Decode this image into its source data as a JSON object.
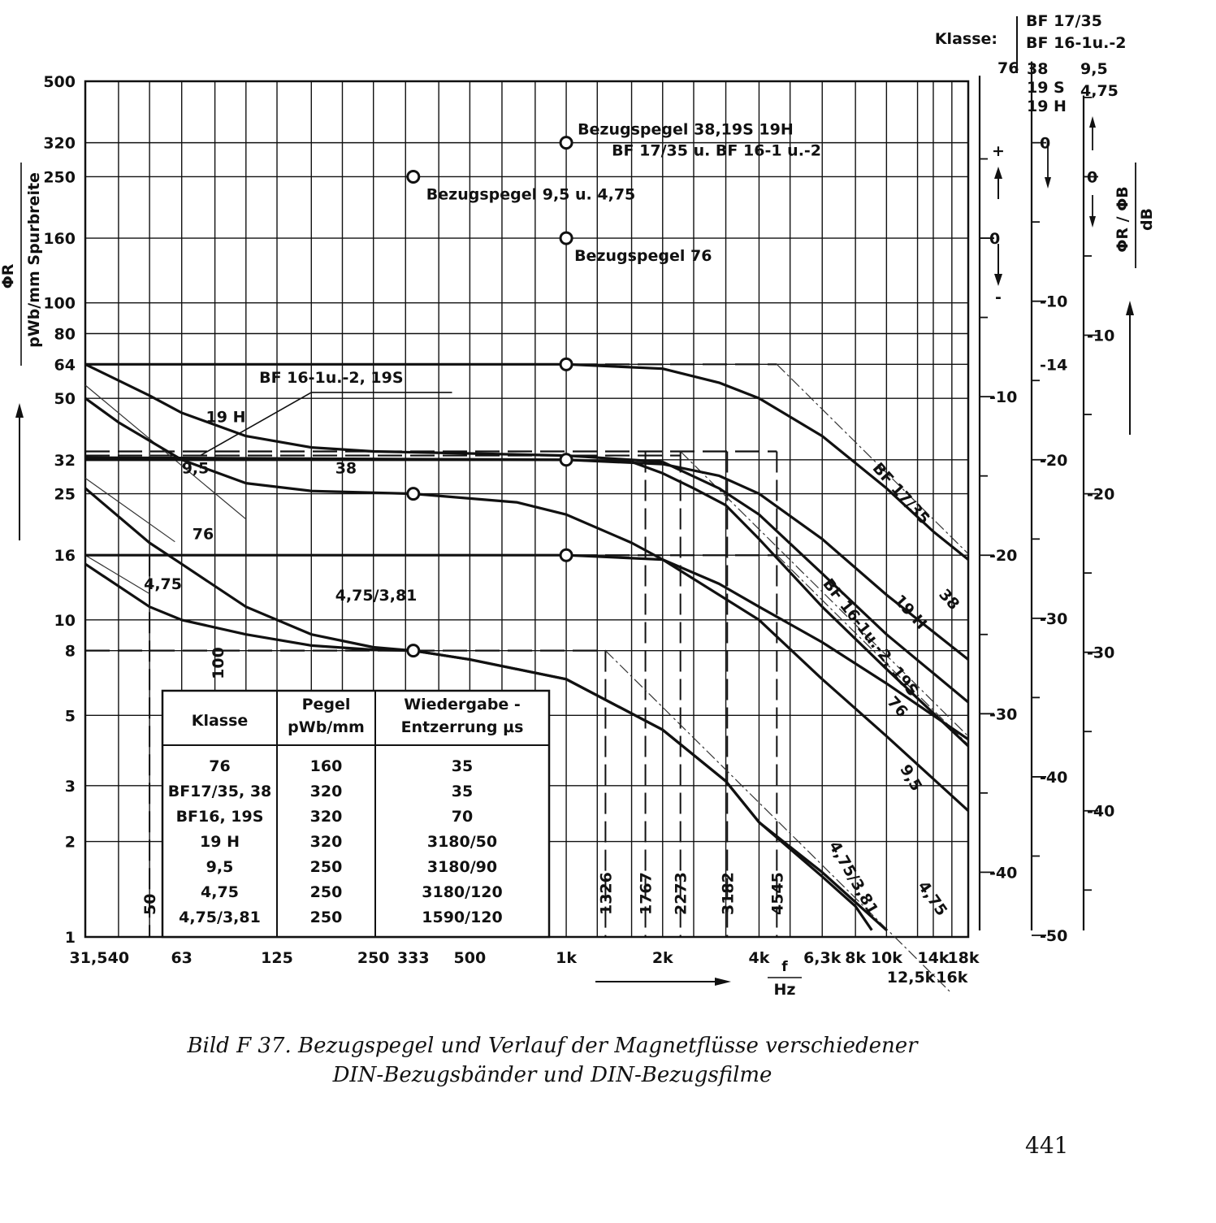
{
  "chart_data": {
    "type": "line",
    "x_scale": "log",
    "y_scale": "log",
    "xlim": [
      31.5,
      18000
    ],
    "ylim": [
      1,
      500
    ],
    "x_tick_labels": [
      {
        "value": 31.5,
        "label": "31,5"
      },
      {
        "value": 40,
        "label": "40"
      },
      {
        "value": 63,
        "label": "63"
      },
      {
        "value": 125,
        "label": "125"
      },
      {
        "value": 250,
        "label": "250"
      },
      {
        "value": 333,
        "label": "333"
      },
      {
        "value": 500,
        "label": "500"
      },
      {
        "value": 1000,
        "label": "1k"
      },
      {
        "value": 2000,
        "label": "2k"
      },
      {
        "value": 4000,
        "label": "4k"
      },
      {
        "value": 6300,
        "label": "6,3k"
      },
      {
        "value": 8000,
        "label": "8k"
      },
      {
        "value": 10000,
        "label": "10k"
      },
      {
        "value": 14000,
        "label": "14k"
      },
      {
        "value": 18000,
        "label": "18k"
      }
    ],
    "x_tick_labels_row2": [
      {
        "value": 12500,
        "label": "12,5k"
      },
      {
        "value": 16000,
        "label": "16k"
      }
    ],
    "x_grid": [
      31.5,
      40,
      50,
      63,
      80,
      100,
      125,
      160,
      200,
      250,
      315,
      400,
      500,
      630,
      800,
      1000,
      1250,
      1600,
      2000,
      2500,
      3150,
      4000,
      5000,
      6300,
      8000,
      10000,
      12500,
      14000,
      16000,
      18000
    ],
    "y_tick_labels": [
      {
        "value": 500,
        "label": "500"
      },
      {
        "value": 320,
        "label": "320"
      },
      {
        "value": 250,
        "label": "250"
      },
      {
        "value": 160,
        "label": "160"
      },
      {
        "value": 100,
        "label": "100"
      },
      {
        "value": 80,
        "label": "80"
      },
      {
        "value": 64,
        "label": "64"
      },
      {
        "value": 50,
        "label": "50"
      },
      {
        "value": 32,
        "label": "32"
      },
      {
        "value": 25,
        "label": "25"
      },
      {
        "value": 16,
        "label": "16"
      },
      {
        "value": 10,
        "label": "10"
      },
      {
        "value": 8,
        "label": "8"
      },
      {
        "value": 5,
        "label": "5"
      },
      {
        "value": 3,
        "label": "3"
      },
      {
        "value": 2,
        "label": "2"
      },
      {
        "value": 1,
        "label": "1"
      }
    ],
    "y_grid": [
      500,
      320,
      250,
      160,
      100,
      80,
      64,
      50,
      32,
      25,
      16,
      10,
      8,
      5,
      3,
      2,
      1
    ],
    "ylabel_symbol": "ΦR",
    "ylabel": "pWb/mm Spurbreite",
    "xlabel_num": "f",
    "xlabel_den": "Hz",
    "series": [
      {
        "name": "BF 17/35",
        "label_rot": 48,
        "points": [
          [
            31.5,
            64
          ],
          [
            1000,
            64
          ],
          [
            2000,
            62
          ],
          [
            3000,
            56
          ],
          [
            4000,
            50
          ],
          [
            6300,
            38
          ],
          [
            10000,
            26
          ],
          [
            14000,
            19
          ],
          [
            18000,
            15.5
          ]
        ]
      },
      {
        "name": "38",
        "label_rot": 42,
        "points": [
          [
            31.5,
            32
          ],
          [
            1000,
            32
          ],
          [
            2000,
            31
          ],
          [
            3000,
            28.5
          ],
          [
            4000,
            25
          ],
          [
            6300,
            18
          ],
          [
            10000,
            12
          ],
          [
            18000,
            7.5
          ]
        ]
      },
      {
        "name": "19 H",
        "label_rot": 45,
        "points": [
          [
            31.5,
            64
          ],
          [
            50,
            51
          ],
          [
            63,
            45
          ],
          [
            100,
            38
          ],
          [
            160,
            35
          ],
          [
            250,
            34
          ],
          [
            1000,
            33
          ],
          [
            2000,
            31.5
          ],
          [
            3000,
            26
          ],
          [
            4000,
            21.5
          ],
          [
            6300,
            14
          ],
          [
            10000,
            9
          ],
          [
            18000,
            5.5
          ]
        ]
      },
      {
        "name": "BF 16-1u.-2, 19S",
        "label_rot": 50,
        "points": [
          [
            31.5,
            32.5
          ],
          [
            1000,
            32
          ],
          [
            1600,
            31.5
          ],
          [
            2000,
            29
          ],
          [
            2500,
            26
          ],
          [
            3150,
            23
          ],
          [
            4000,
            18
          ],
          [
            6300,
            11
          ],
          [
            10000,
            7
          ],
          [
            18000,
            4
          ]
        ]
      },
      {
        "name": "76",
        "label_rot": 45,
        "points": [
          [
            31.5,
            16
          ],
          [
            1000,
            16
          ],
          [
            2000,
            15.5
          ],
          [
            3000,
            13
          ],
          [
            4000,
            11
          ],
          [
            6300,
            8.5
          ],
          [
            10000,
            6.3
          ],
          [
            18000,
            4.2
          ]
        ]
      },
      {
        "name": "9,5",
        "label_rot": 60,
        "points": [
          [
            31.5,
            50
          ],
          [
            40,
            42
          ],
          [
            63,
            32
          ],
          [
            100,
            27
          ],
          [
            160,
            25.5
          ],
          [
            333,
            25
          ],
          [
            700,
            23.5
          ],
          [
            1000,
            21.5
          ],
          [
            1600,
            17.5
          ],
          [
            2000,
            15.5
          ],
          [
            4000,
            10
          ],
          [
            6300,
            6.5
          ],
          [
            10000,
            4.3
          ],
          [
            18000,
            2.5
          ]
        ]
      },
      {
        "name": "4,75",
        "label_rot": 50,
        "points": [
          [
            31.5,
            26
          ],
          [
            50,
            17.5
          ],
          [
            63,
            15
          ],
          [
            100,
            11
          ],
          [
            160,
            9
          ],
          [
            250,
            8.2
          ],
          [
            333,
            8
          ],
          [
            500,
            7.5
          ],
          [
            1000,
            6.5
          ],
          [
            2000,
            4.5
          ],
          [
            3150,
            3.1
          ],
          [
            4000,
            2.3
          ],
          [
            6300,
            1.6
          ],
          [
            10000,
            1.05
          ]
        ]
      },
      {
        "name": "4,75/3,81",
        "label_rot": 60,
        "points": [
          [
            31.5,
            15
          ],
          [
            50,
            11
          ],
          [
            63,
            10
          ],
          [
            100,
            9
          ],
          [
            160,
            8.3
          ],
          [
            250,
            8.05
          ],
          [
            333,
            8
          ],
          [
            500,
            7.5
          ],
          [
            1000,
            6.5
          ],
          [
            2000,
            4.5
          ],
          [
            3150,
            3.1
          ],
          [
            4000,
            2.3
          ],
          [
            6300,
            1.55
          ],
          [
            8000,
            1.25
          ],
          [
            9000,
            1.05
          ]
        ]
      }
    ],
    "curve_labels": [
      {
        "text": "BF 16-1u.-2, 19S",
        "f": 110,
        "v": 56
      },
      {
        "text": "19 H",
        "f": 75,
        "v": 42
      },
      {
        "text": "9,5",
        "f": 63,
        "v": 29
      },
      {
        "text": "38",
        "f": 190,
        "v": 29
      },
      {
        "text": "76",
        "f": 68,
        "v": 18
      },
      {
        "text": "4,75",
        "f": 48,
        "v": 12.5
      },
      {
        "text": "4,75/3,81",
        "f": 190,
        "v": 11.5
      },
      {
        "text": "100",
        "f": 85,
        "v": 6.5
      }
    ],
    "reference_points": [
      {
        "label": "Bezugspegel 38,19S 19H",
        "label2": "BF 17/35 u. BF 16-1 u.-2",
        "x": 1000,
        "y": 320
      },
      {
        "label": "Bezugspegel 9,5 u. 4,75",
        "x": 333,
        "y": 250
      },
      {
        "label": "Bezugspegel 76",
        "x": 1000,
        "y": 160
      }
    ],
    "level_markers": [
      [
        1000,
        64
      ],
      [
        1000,
        32
      ],
      [
        333,
        25
      ],
      [
        1000,
        16
      ],
      [
        333,
        8
      ]
    ],
    "dashed_levels": [
      {
        "y": 64,
        "from": 31.5,
        "to": 4545
      },
      {
        "y": 34,
        "from": 31.5,
        "to": 4545
      },
      {
        "y": 33,
        "from": 31.5,
        "to": 2273
      },
      {
        "y": 16,
        "from": 31.5,
        "to": 4545
      },
      {
        "y": 8,
        "from": 31.5,
        "to": 1326
      }
    ],
    "corner_frequencies": [
      {
        "value": 50,
        "label": "50"
      },
      {
        "value": 1326,
        "label": "1326"
      },
      {
        "value": 1767,
        "label": "1767"
      },
      {
        "value": 2273,
        "label": "2273"
      },
      {
        "value": 3182,
        "label": "3182"
      },
      {
        "value": 4545,
        "label": "4545"
      }
    ],
    "right_scales": {
      "header_label": "Klasse:",
      "classes_top": [
        "BF 17/35",
        "BF 16-1u.-2"
      ],
      "scale1": {
        "title": "76",
        "ticks": [
          0,
          -10,
          -20,
          -30,
          -40
        ],
        "ref": 160,
        "zero_label": "0"
      },
      "scale2": {
        "title_lines": [
          "38",
          "19 S",
          "19 H"
        ],
        "ticks": [
          0,
          -10,
          -14,
          -20,
          -30,
          -40,
          -50
        ],
        "ref": 320
      },
      "scale3": {
        "title_lines": [
          "9,5",
          "4,75"
        ],
        "ticks": [
          0,
          -10,
          -20,
          -30,
          -40
        ],
        "ref": 250
      },
      "plus_sign": "+",
      "minus_sign": "-",
      "db_label_num": "ΦR / ΦB",
      "db_label_den": "dB"
    },
    "table": {
      "headers": [
        "Klasse",
        "Pegel pWb/mm",
        "Wiedergabe-Entzerrung µs"
      ],
      "header_lines": [
        [
          "Klasse"
        ],
        [
          "Pegel",
          "pWb/mm"
        ],
        [
          "Wiedergabe -",
          "Entzerrung  µs"
        ]
      ],
      "rows": [
        [
          "76",
          "160",
          "35"
        ],
        [
          "BF17/35, 38",
          "320",
          "35"
        ],
        [
          "BF16, 19S",
          "320",
          "70"
        ],
        [
          "19 H",
          "320",
          "3180/50"
        ],
        [
          "9,5",
          "250",
          "3180/90"
        ],
        [
          "4,75",
          "250",
          "3180/120"
        ],
        [
          "4,75/3,81",
          "250",
          "1590/120"
        ]
      ]
    }
  },
  "caption": {
    "line1": "Bild F 37.  Bezugspegel und Verlauf der Magnetflüsse verschiedener",
    "line2": "DIN-Bezugsbänder und DIN-Bezugsfilme"
  },
  "page_number": "441"
}
